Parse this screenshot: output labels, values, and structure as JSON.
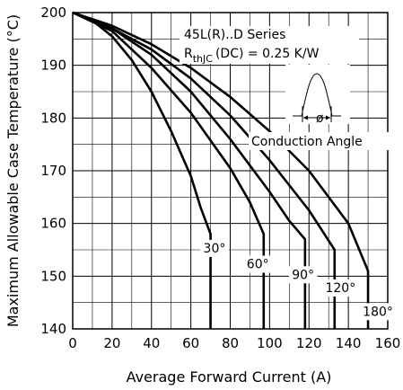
{
  "chart_data": {
    "type": "line",
    "title": "",
    "xlabel": "Average Forward Current (A)",
    "ylabel": "Maximum Allowable Case Temperature (°C)",
    "xlim": [
      0,
      160
    ],
    "ylim": [
      140,
      200
    ],
    "xticks": [
      0,
      20,
      40,
      60,
      80,
      100,
      120,
      140,
      160
    ],
    "yticks": [
      140,
      150,
      160,
      170,
      180,
      190,
      200
    ],
    "grid": true,
    "annotations": {
      "series_name": "45L(R)..D Series",
      "rth_main": "R",
      "rth_sub": "thJC",
      "rth_rest": "(DC) = 0.25 K/W",
      "conduction_angle": "Conduction Angle",
      "phi_symbol": "ø"
    },
    "series": [
      {
        "name": "30°",
        "x": [
          0,
          10,
          20,
          30,
          40,
          50,
          60,
          65,
          70,
          70
        ],
        "y": [
          200,
          198.5,
          195.5,
          191,
          185,
          177.5,
          169,
          163,
          158,
          140
        ]
      },
      {
        "name": "60°",
        "x": [
          0,
          20,
          40,
          60,
          80,
          90,
          97,
          97
        ],
        "y": [
          200,
          196.5,
          189.5,
          181,
          170.5,
          164,
          158,
          140
        ]
      },
      {
        "name": "90°",
        "x": [
          0,
          20,
          40,
          60,
          80,
          100,
          110,
          118,
          118
        ],
        "y": [
          200,
          197,
          192,
          185,
          176,
          166,
          160.5,
          157,
          140
        ]
      },
      {
        "name": "120°",
        "x": [
          0,
          20,
          40,
          60,
          80,
          100,
          120,
          133,
          133
        ],
        "y": [
          200,
          197,
          193,
          187.5,
          180.5,
          172,
          162.5,
          155,
          140
        ]
      },
      {
        "name": "180°",
        "x": [
          0,
          20,
          40,
          60,
          80,
          100,
          120,
          140,
          150,
          150
        ],
        "y": [
          200,
          197.5,
          194,
          189.5,
          184,
          177.5,
          170,
          160,
          151,
          140
        ]
      }
    ]
  }
}
